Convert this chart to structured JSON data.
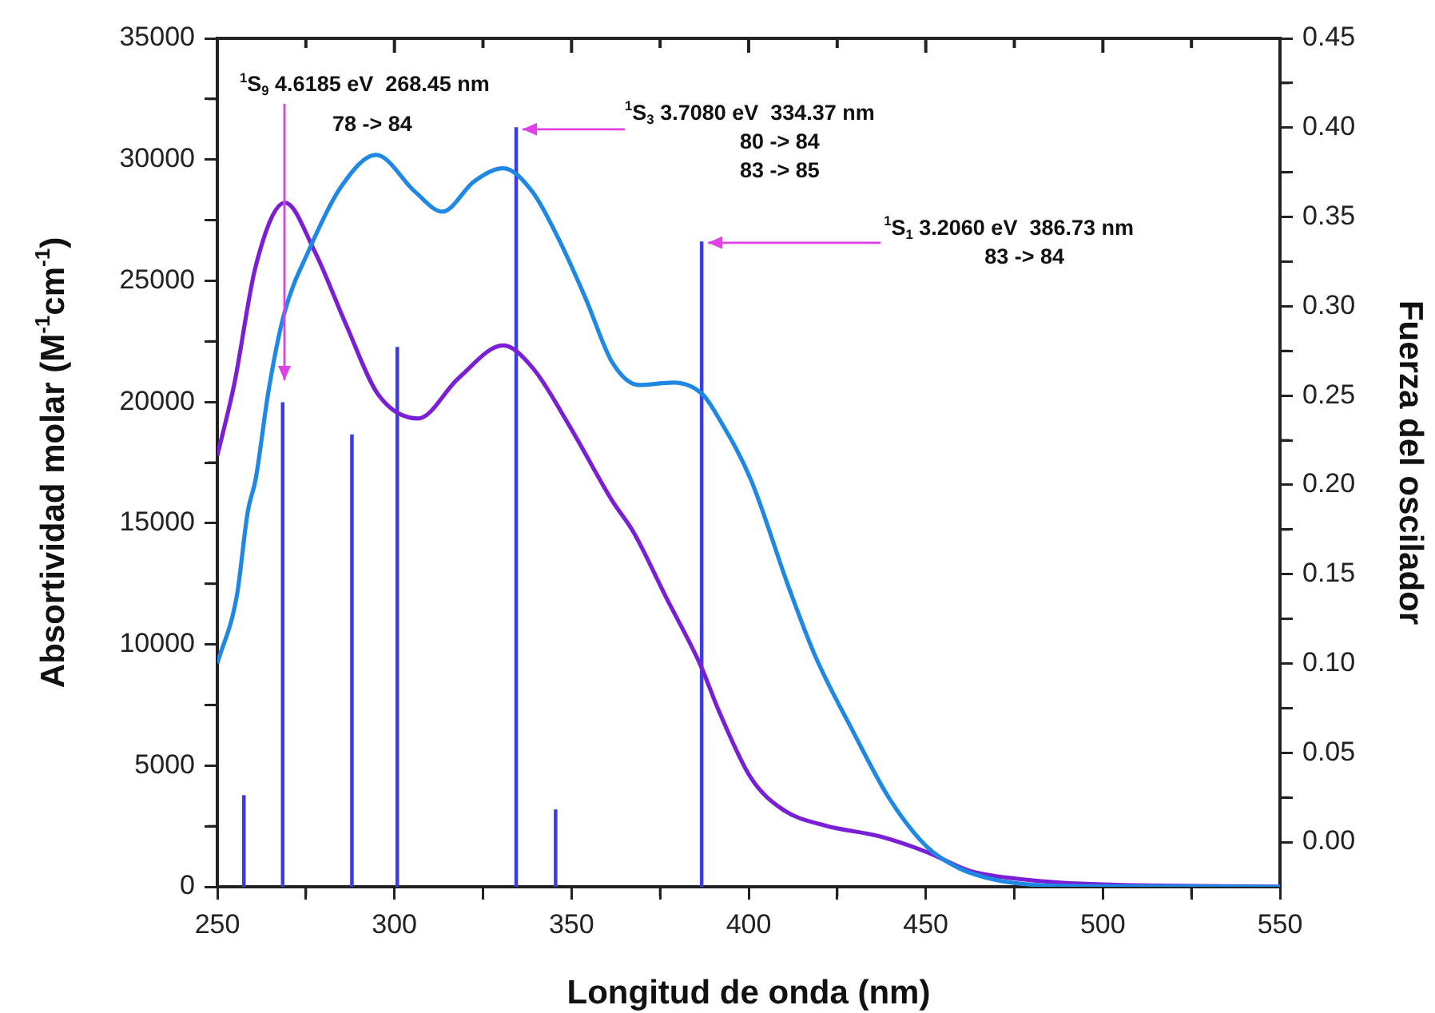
{
  "chart_data": {
    "type": "line",
    "xlabel": "Longitud de onda (nm)",
    "ylabel": "Absortividad molar (M$^{-1}$cm$^{-1}$)",
    "y2label": "Fuerza del oscilador",
    "xlim": [
      250,
      550
    ],
    "xticks": [
      250,
      {
        "value": 275,
        "label": null
      },
      300,
      {
        "value": 325,
        "label": null
      },
      350,
      {
        "value": 375,
        "label": null
      },
      400,
      {
        "value": 425,
        "label": null
      },
      450,
      {
        "value": 475,
        "label": null
      },
      500,
      {
        "value": 525,
        "label": null
      },
      550
    ],
    "ylim": [
      0,
      35000
    ],
    "yticks": [
      0,
      {
        "value": 2500,
        "label": null
      },
      5000,
      {
        "value": 7500,
        "label": null
      },
      10000,
      {
        "value": 12500,
        "label": null
      },
      15000,
      {
        "value": 17500,
        "label": null
      },
      20000,
      {
        "value": 22500,
        "label": null
      },
      25000,
      {
        "value": 27500,
        "label": null
      },
      30000,
      {
        "value": 32500,
        "label": null
      },
      35000
    ],
    "y2lim": [
      -0.025,
      0.45
    ],
    "y2ticks": [
      {
        "value": 0,
        "label": "0.00"
      },
      {
        "value": 0.025,
        "label": null
      },
      {
        "value": 0.05,
        "label": "0.05"
      },
      {
        "value": 0.075,
        "label": null
      },
      {
        "value": 0.1,
        "label": "0.10"
      },
      {
        "value": 0.125,
        "label": null
      },
      {
        "value": 0.15,
        "label": "0.15"
      },
      {
        "value": 0.175,
        "label": null
      },
      {
        "value": 0.2,
        "label": "0.20"
      },
      {
        "value": 0.225,
        "label": null
      },
      {
        "value": 0.25,
        "label": "0.25"
      },
      {
        "value": 0.275,
        "label": null
      },
      {
        "value": 0.3,
        "label": "0.30"
      },
      {
        "value": 0.325,
        "label": null
      },
      {
        "value": 0.35,
        "label": "0.35"
      },
      {
        "value": 0.375,
        "label": null
      },
      {
        "value": 0.4,
        "label": "0.40"
      },
      {
        "value": 0.425,
        "label": null
      },
      {
        "value": 0.45,
        "label": "0.45"
      }
    ],
    "grid": false,
    "legend": false,
    "marker": "none",
    "line_style": "solid",
    "series": [
      {
        "color": "#1f88e5",
        "x": [
          250,
          255.5,
          258.6,
          260.8,
          264.5,
          268.8,
          275.8,
          284.9,
          294.8,
          305.9,
          313.5,
          322.5,
          330.7,
          339,
          346.5,
          354,
          361.5,
          369,
          378.8,
          387,
          391.6,
          400.6,
          411.2,
          418.7,
          429.2,
          439.8,
          450.3,
          459.3,
          469.8,
          481.8,
          500,
          550
        ],
        "values": [
          9220,
          12000,
          15480,
          16800,
          20500,
          23600,
          26240,
          28870,
          30190,
          28660,
          27850,
          29100,
          29640,
          28660,
          26680,
          24260,
          21630,
          20700,
          20800,
          20310,
          19320,
          16800,
          12400,
          9550,
          6480,
          3620,
          1650,
          770,
          280,
          70,
          20,
          0
        ]
      },
      {
        "color": "#7b1fd6",
        "x": [
          250,
          254.8,
          260.8,
          269.1,
          277.4,
          286.4,
          295.4,
          306.7,
          318,
          330.7,
          339,
          349.5,
          361.5,
          367.6,
          376.6,
          386.5,
          391.6,
          400.6,
          409.7,
          421.7,
          436.7,
          450.3,
          462.3,
          475.8,
          496.9,
          550
        ],
        "values": [
          17790,
          20750,
          25580,
          28220,
          26240,
          23170,
          20310,
          19320,
          20970,
          22330,
          21410,
          18990,
          15920,
          14600,
          11970,
          9110,
          7250,
          4500,
          3180,
          2520,
          2090,
          1430,
          660,
          330,
          110,
          0
        ]
      },
      {
        "type": "bar",
        "axis": "y2",
        "color": "#3c3ce6",
        "x": [
          257.5,
          268.45,
          288,
          300.8,
          334.37,
          345.5,
          386.73
        ],
        "base": [
          -0.025,
          -0.025,
          -0.025,
          -0.025,
          -0.025,
          -0.025,
          -0.025
        ],
        "values": [
          0.051,
          0.271,
          0.253,
          0.302,
          0.425,
          0.043,
          0.361
        ]
      }
    ],
    "annotations": [
      "$^{1}$S$_{9}$ 4.6185 eV  268.45 nm\n78 -> 84",
      {
        "text": "$^{1}$S$_{3}$ 3.7080 eV  334.37 nm\n80 -> 84\n83 -> 85",
        "x": 334.37,
        "y": 31250
      },
      {
        "text": "$^{1}$S$_{1}$ 3.2060 eV  386.73 nm\n83 -> 84",
        "x": 386.73,
        "y": 26570
      }
    ]
  }
}
